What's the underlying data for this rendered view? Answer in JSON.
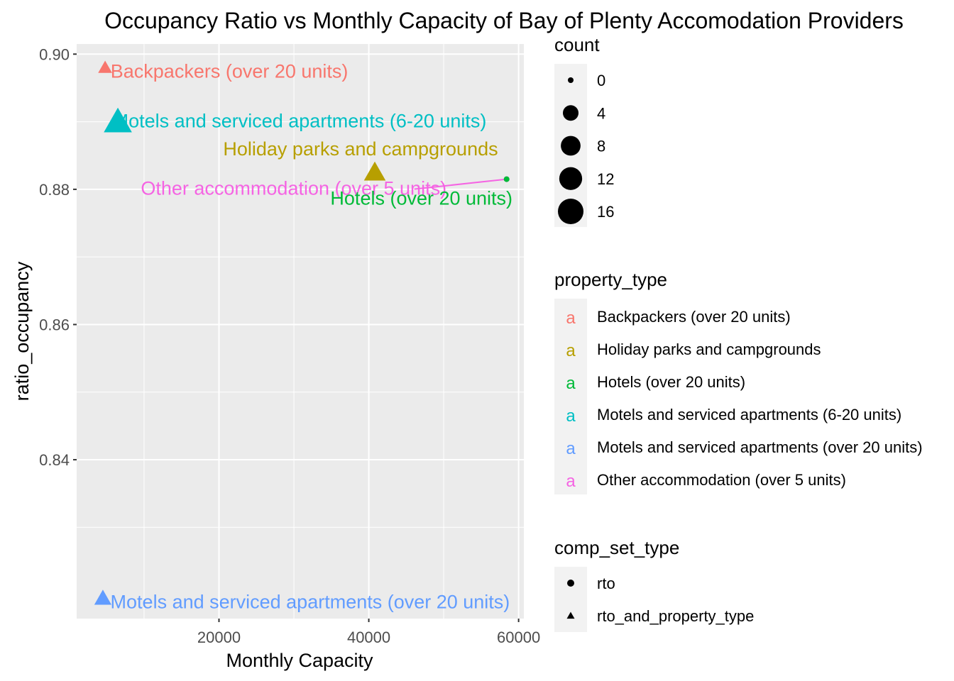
{
  "chart_data": {
    "type": "scatter",
    "title": "Occupancy Ratio vs Monthly Capacity of Bay of Plenty Accomodation Providers",
    "xlabel": "Monthly Capacity",
    "ylabel": "ratio_occupancy",
    "xlim": [
      1000,
      60700
    ],
    "ylim": [
      0.8165,
      0.9015
    ],
    "x_ticks": [
      20000,
      40000,
      60000
    ],
    "x_tick_labels": [
      "20000",
      "40000",
      "60000"
    ],
    "y_ticks": [
      0.84,
      0.86,
      0.88,
      0.9
    ],
    "y_tick_labels": [
      "0.84",
      "0.86",
      "0.88",
      "0.90"
    ],
    "grid": true,
    "legend_position": "right",
    "points": [
      {
        "property_type": "Backpackers (over 20 units)",
        "x": 4800,
        "y": 0.898,
        "count": 2,
        "comp_set_type": "rto_and_property_type",
        "color": "#F8766D",
        "label": "Backpackers (over 20 units)"
      },
      {
        "property_type": "Motels and serviced apartments (6-20 units)",
        "x": 6500,
        "y": 0.89,
        "count": 16,
        "comp_set_type": "rto_and_property_type",
        "color": "#00BFC4",
        "label": "Motels and serviced apartments (6-20 units)"
      },
      {
        "property_type": "Holiday parks and campgrounds",
        "x": 40800,
        "y": 0.8825,
        "count": 8,
        "comp_set_type": "rto_and_property_type",
        "color": "#B79F00",
        "label": "Holiday parks and campgrounds"
      },
      {
        "property_type": "Other accommodation (over 5 units)",
        "x": 58400,
        "y": 0.8815,
        "count": 0,
        "comp_set_type": "rto",
        "color": "#F564E3",
        "label": "Other accommodation (over 5 units)"
      },
      {
        "property_type": "Hotels (over 20 units)",
        "x": 58400,
        "y": 0.8815,
        "count": 0,
        "comp_set_type": "rto",
        "color": "#00BA38",
        "label": "Hotels (over 20 units)"
      },
      {
        "property_type": "Motels and serviced apartments (over 20 units)",
        "x": 4500,
        "y": 0.8195,
        "count": 4,
        "comp_set_type": "rto_and_property_type",
        "color": "#619CFF",
        "label": "Motels and serviced apartments (over 20 units)"
      }
    ],
    "legends": {
      "count": {
        "title": "count",
        "values": [
          0,
          4,
          8,
          12,
          16
        ],
        "labels": [
          "0",
          "4",
          "8",
          "12",
          "16"
        ]
      },
      "property_type": {
        "title": "property_type",
        "glyph": "a",
        "items": [
          {
            "label": "Backpackers (over 20 units)",
            "color": "#F8766D"
          },
          {
            "label": "Holiday parks and campgrounds",
            "color": "#B79F00"
          },
          {
            "label": "Hotels (over 20 units)",
            "color": "#00BA38"
          },
          {
            "label": "Motels and serviced apartments (6-20 units)",
            "color": "#00BFC4"
          },
          {
            "label": "Motels and serviced apartments (over 20 units)",
            "color": "#619CFF"
          },
          {
            "label": "Other accommodation (over 5 units)",
            "color": "#F564E3"
          }
        ]
      },
      "comp_set_type": {
        "title": "comp_set_type",
        "items": [
          {
            "label": "rto",
            "shape": "circle"
          },
          {
            "label": "rto_and_property_type",
            "shape": "triangle"
          }
        ]
      }
    }
  }
}
